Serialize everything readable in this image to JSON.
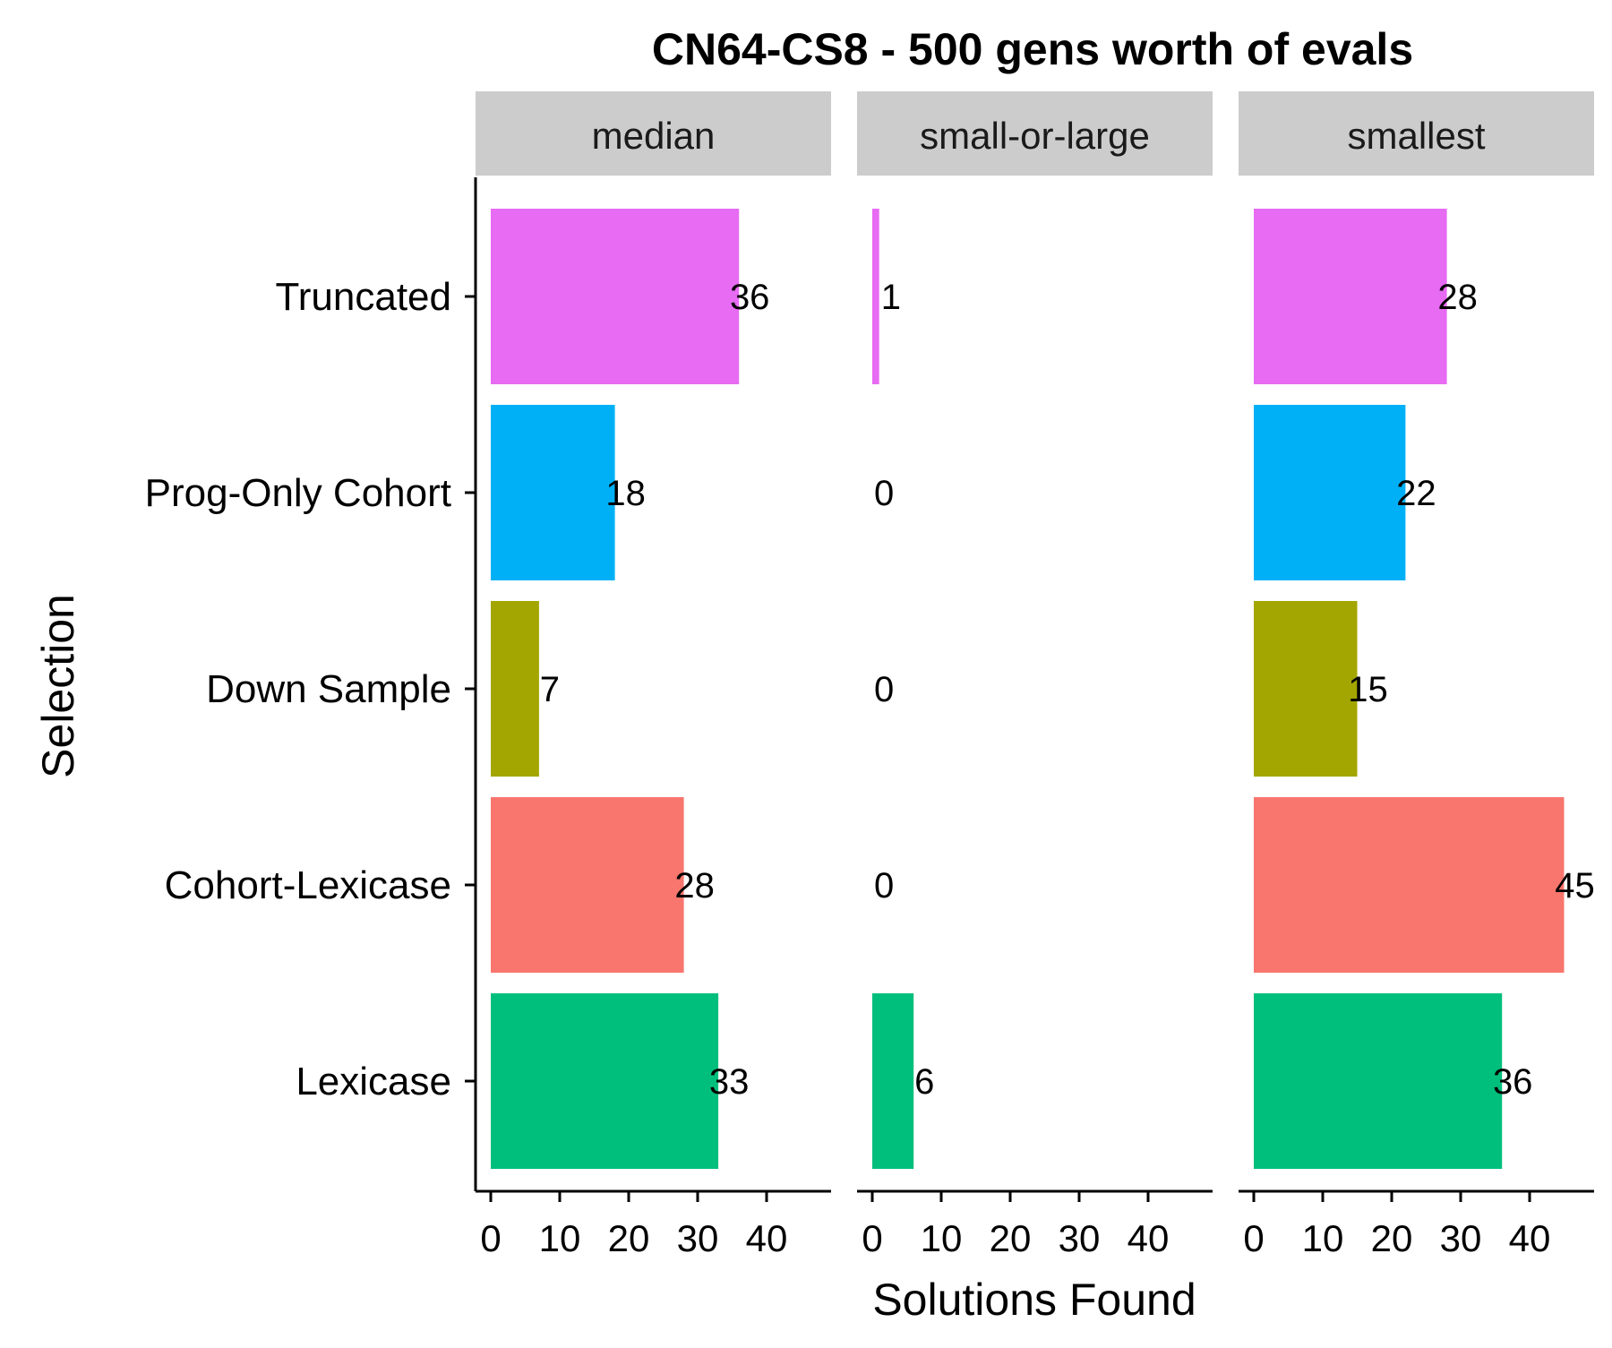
{
  "chart_data": {
    "type": "bar",
    "orientation": "horizontal",
    "title": "CN64-CS8  - 500 gens worth of evals",
    "xlabel": "Solutions Found",
    "ylabel": "Selection",
    "xlim": [
      0,
      50
    ],
    "x_ticks": [
      "0",
      "10",
      "20",
      "30",
      "40"
    ],
    "categories": [
      "Truncated",
      "Prog-Only Cohort",
      "Down Sample",
      "Cohort-Lexicase",
      "Lexicase"
    ],
    "colors": [
      "#E76BF3",
      "#00B0F6",
      "#A3A500",
      "#F8766D",
      "#00BF7D"
    ],
    "facets": [
      {
        "label": "median",
        "values": [
          36,
          18,
          7,
          28,
          33
        ]
      },
      {
        "label": "small-or-large",
        "values": [
          1,
          0,
          0,
          0,
          6
        ]
      },
      {
        "label": "smallest",
        "values": [
          28,
          22,
          15,
          45,
          36
        ]
      }
    ],
    "grid": false,
    "legend": "none"
  }
}
